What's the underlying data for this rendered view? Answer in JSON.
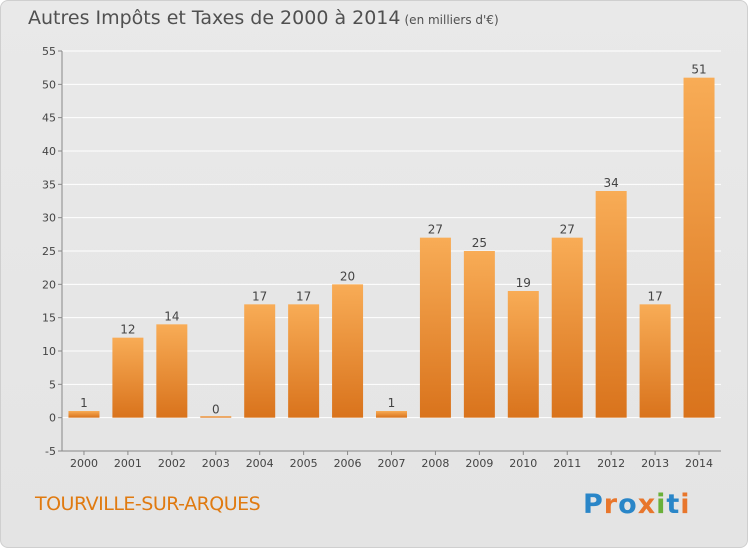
{
  "title": "Autres Impôts et Taxes de 2000 à 2014",
  "unit": "(en milliers d'€)",
  "commune": "TOURVILLE-SUR-ARQUES",
  "logo": {
    "letters": [
      "P",
      "r",
      "o",
      "x",
      "i",
      "t",
      "i"
    ],
    "colors": [
      "#2a86c8",
      "#e8762c",
      "#2a86c8",
      "#e8762c",
      "#6ab03a",
      "#2a86c8",
      "#e8762c"
    ]
  },
  "colors": {
    "bar_light": "#f8ac56",
    "bar_dark": "#d9731c",
    "grid": "#ffffff",
    "axis": "#888888"
  },
  "chart_data": {
    "type": "bar",
    "categories": [
      "2000",
      "2001",
      "2002",
      "2003",
      "2004",
      "2005",
      "2006",
      "2007",
      "2008",
      "2009",
      "2010",
      "2011",
      "2012",
      "2013",
      "2014"
    ],
    "values": [
      1,
      12,
      14,
      0,
      17,
      17,
      20,
      1,
      27,
      25,
      19,
      27,
      34,
      17,
      51
    ],
    "ylim": [
      -5,
      55
    ],
    "yticks": [
      -5,
      0,
      5,
      10,
      15,
      20,
      25,
      30,
      35,
      40,
      45,
      50,
      55
    ],
    "grid": true
  }
}
